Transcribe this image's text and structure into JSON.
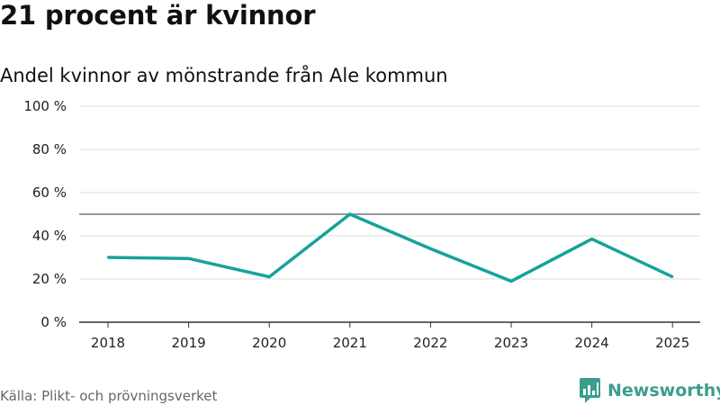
{
  "header": {
    "title": "21 procent är kvinnor",
    "subtitle": "Andel kvinnor av mönstrande från Ale kommun"
  },
  "footer": {
    "source": "Källa: Plikt- och prövningsverket",
    "brand_name": "Newsworthy",
    "brand_icon": "newsworthy-logo-icon"
  },
  "colors": {
    "line": "#16a398",
    "grid": "#dddddd",
    "axis": "#333333",
    "reference_line": "#777777",
    "brand": "#3a9d8d"
  },
  "chart_data": {
    "type": "line",
    "title": "21 procent är kvinnor",
    "subtitle": "Andel kvinnor av mönstrande från Ale kommun",
    "xlabel": "",
    "ylabel": "",
    "categories": [
      "2018",
      "2019",
      "2020",
      "2021",
      "2022",
      "2023",
      "2024",
      "2025"
    ],
    "series": [
      {
        "name": "Andel kvinnor",
        "values": [
          30,
          29.5,
          21,
          50,
          34,
          19,
          38.5,
          21
        ]
      }
    ],
    "ylim": [
      0,
      100
    ],
    "yticks": [
      0,
      20,
      40,
      60,
      80,
      100
    ],
    "ytick_labels": [
      "0 %",
      "20 %",
      "40 %",
      "60 %",
      "80 %",
      "100 %"
    ],
    "reference_line": 50,
    "grid": true,
    "legend": "none"
  }
}
